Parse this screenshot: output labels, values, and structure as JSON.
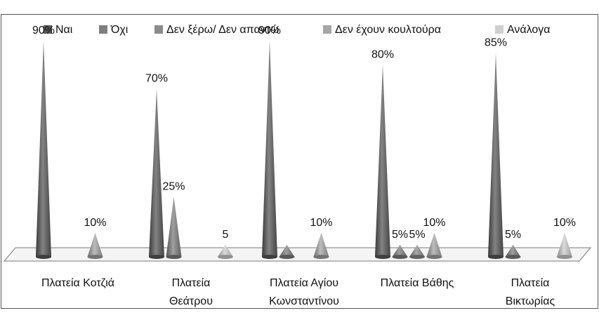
{
  "chart_data": {
    "type": "cone-column",
    "title": "",
    "xlabel": "",
    "ylabel": "",
    "ylim": [
      0,
      100
    ],
    "grid": false,
    "legend_position": "top",
    "categories": [
      [
        "Πλατεία Κοτζιά"
      ],
      [
        "Πλατεία",
        "Θεάτρου"
      ],
      [
        "Πλατεία Αγίου",
        "Κωνσταντίνου"
      ],
      [
        "Πλατεία Βάθης"
      ],
      [
        "Πλατεία",
        "Βικτωρίας"
      ]
    ],
    "series": [
      {
        "name": "Ναι",
        "color": "#595959",
        "values": [
          90,
          70,
          90,
          80,
          85
        ],
        "labels": [
          "90%",
          "70%",
          "90%",
          "80%",
          "85%"
        ]
      },
      {
        "name": "Όχι",
        "color": "#7f7f7f",
        "values": [
          0,
          25,
          5,
          5,
          5
        ],
        "labels": [
          "",
          "25%",
          "",
          "5%",
          "5%"
        ]
      },
      {
        "name": "Δεν ξέρω/ Δεν απαντώ",
        "color": "#8c8c8c",
        "values": [
          0,
          0,
          0,
          5,
          0
        ],
        "labels": [
          "",
          "",
          "",
          "5%",
          ""
        ]
      },
      {
        "name": "Δεν έχουν κουλτούρα",
        "color": "#a6a6a6",
        "values": [
          10,
          0,
          10,
          10,
          0
        ],
        "labels": [
          "10%",
          "",
          "10%",
          "10%",
          ""
        ]
      },
      {
        "name": "Ανάλογα",
        "color": "#cfcfcf",
        "values": [
          0,
          5,
          0,
          0,
          10
        ],
        "labels": [
          "",
          "5",
          "",
          "",
          "10%"
        ]
      }
    ]
  }
}
